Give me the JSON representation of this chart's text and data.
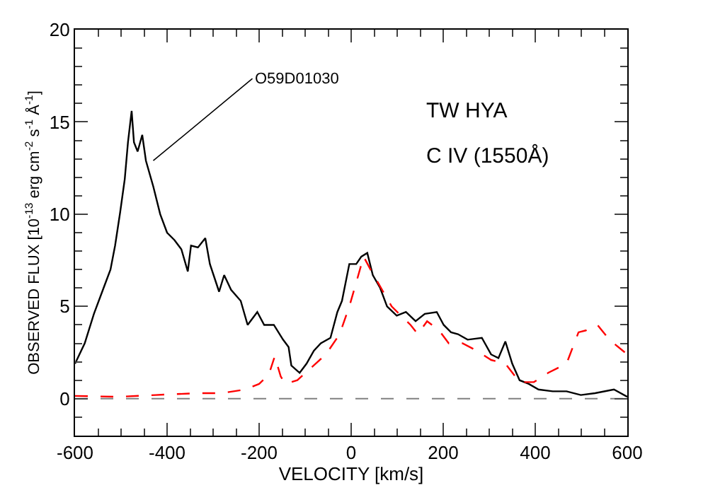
{
  "chart_data": {
    "type": "line",
    "xlabel": "VELOCITY [km/s]",
    "ylabel": "OBSERVED FLUX [10$^{-13}$ erg cm$^{-2}$ s$^{-1}$ Å$^{-1}$]",
    "xlim": [
      -600,
      600
    ],
    "ylim": [
      -2,
      20
    ],
    "xticks": [
      -600,
      {
        "value": -550,
        "label": null
      },
      {
        "value": -500,
        "label": null
      },
      {
        "value": -450,
        "label": null
      },
      -400,
      {
        "value": -350,
        "label": null
      },
      {
        "value": -300,
        "label": null
      },
      {
        "value": -250,
        "label": null
      },
      -200,
      {
        "value": -150,
        "label": null
      },
      {
        "value": -100,
        "label": null
      },
      {
        "value": -50,
        "label": null
      },
      0,
      {
        "value": 50,
        "label": null
      },
      {
        "value": 100,
        "label": null
      },
      {
        "value": 150,
        "label": null
      },
      200,
      {
        "value": 250,
        "label": null
      },
      {
        "value": 300,
        "label": null
      },
      {
        "value": 350,
        "label": null
      },
      400,
      {
        "value": 450,
        "label": null
      },
      {
        "value": 500,
        "label": null
      },
      {
        "value": 550,
        "label": null
      },
      600
    ],
    "yticks": [
      {
        "value": -1,
        "label": null
      },
      0,
      {
        "value": 1,
        "label": null
      },
      {
        "value": 2,
        "label": null
      },
      {
        "value": 3,
        "label": null
      },
      {
        "value": 4,
        "label": null
      },
      5,
      {
        "value": 6,
        "label": null
      },
      {
        "value": 7,
        "label": null
      },
      {
        "value": 8,
        "label": null
      },
      {
        "value": 9,
        "label": null
      },
      10,
      {
        "value": 11,
        "label": null
      },
      {
        "value": 12,
        "label": null
      },
      {
        "value": 13,
        "label": null
      },
      {
        "value": 14,
        "label": null
      },
      15,
      {
        "value": 16,
        "label": null
      },
      {
        "value": 17,
        "label": null
      },
      {
        "value": 18,
        "label": null
      },
      {
        "value": 19,
        "label": null
      },
      20
    ],
    "grid": false,
    "marker": "none",
    "series": [
      {
        "color": "#000000",
        "line_style": "solid",
        "x": [
          -600,
          -579,
          -559,
          -538,
          -523,
          -513,
          -502,
          -492,
          -485,
          -477,
          -472,
          -464,
          -454,
          -446,
          -430,
          -415,
          -400,
          -384,
          -369,
          -355,
          -348,
          -333,
          -317,
          -307,
          -287,
          -276,
          -261,
          -240,
          -225,
          -204,
          -189,
          -168,
          -148,
          -136,
          -130,
          -112,
          -97,
          -81,
          -66,
          -45,
          -30,
          -20,
          -4,
          11,
          22,
          35,
          47,
          63,
          78,
          99,
          119,
          140,
          160,
          186,
          201,
          217,
          232,
          253,
          284,
          304,
          320,
          335,
          350,
          366,
          386,
          407,
          438,
          468,
          499,
          530,
          571,
          600
        ],
        "values": [
          1.9,
          3.0,
          4.6,
          6.0,
          7.0,
          8.3,
          10.1,
          11.9,
          13.9,
          15.6,
          13.9,
          13.4,
          14.3,
          12.9,
          11.5,
          10.0,
          9.0,
          8.6,
          8.1,
          6.9,
          8.3,
          8.2,
          8.7,
          7.3,
          5.8,
          6.7,
          5.9,
          5.3,
          4.0,
          4.7,
          4.0,
          4.0,
          3.2,
          2.8,
          1.8,
          1.4,
          1.9,
          2.6,
          3.0,
          3.3,
          4.7,
          5.3,
          7.3,
          7.3,
          7.7,
          7.9,
          6.7,
          6.0,
          5.0,
          4.5,
          4.7,
          4.2,
          4.6,
          4.7,
          4.0,
          3.6,
          3.5,
          3.2,
          3.3,
          2.4,
          2.2,
          3.1,
          1.9,
          1.0,
          0.8,
          0.5,
          0.4,
          0.4,
          0.2,
          0.3,
          0.5,
          0.1
        ]
      },
      {
        "color": "#ff0000",
        "line_style": "dashed",
        "x": [
          -600,
          -507,
          -425,
          -333,
          -282,
          -230,
          -200,
          -179,
          -166,
          -153,
          -143,
          -117,
          -86,
          -55,
          -25,
          -4,
          11,
          27,
          42,
          58,
          88,
          129,
          145,
          165,
          191,
          212,
          242,
          273,
          304,
          335,
          366,
          397,
          428,
          468,
          494,
          510,
          535,
          561,
          600
        ],
        "values": [
          0.15,
          0.1,
          0.2,
          0.3,
          0.3,
          0.5,
          0.8,
          1.3,
          2.3,
          1.2,
          0.8,
          1.0,
          1.7,
          2.4,
          3.5,
          5.0,
          6.3,
          7.7,
          7.0,
          6.3,
          5.0,
          4.0,
          3.5,
          4.2,
          3.7,
          3.0,
          3.0,
          2.6,
          2.1,
          1.9,
          0.9,
          0.9,
          1.4,
          1.9,
          3.6,
          3.7,
          4.0,
          3.2,
          2.4
        ]
      }
    ],
    "ref_lines": [
      {
        "axis": "y",
        "value": 0,
        "color": "#808080",
        "line_style": "dashed"
      }
    ],
    "annotations": [
      {
        "text": "O59D01030",
        "x": -430,
        "y": 12.9
      },
      "TW HYA",
      "C IV (1550Å)"
    ]
  }
}
